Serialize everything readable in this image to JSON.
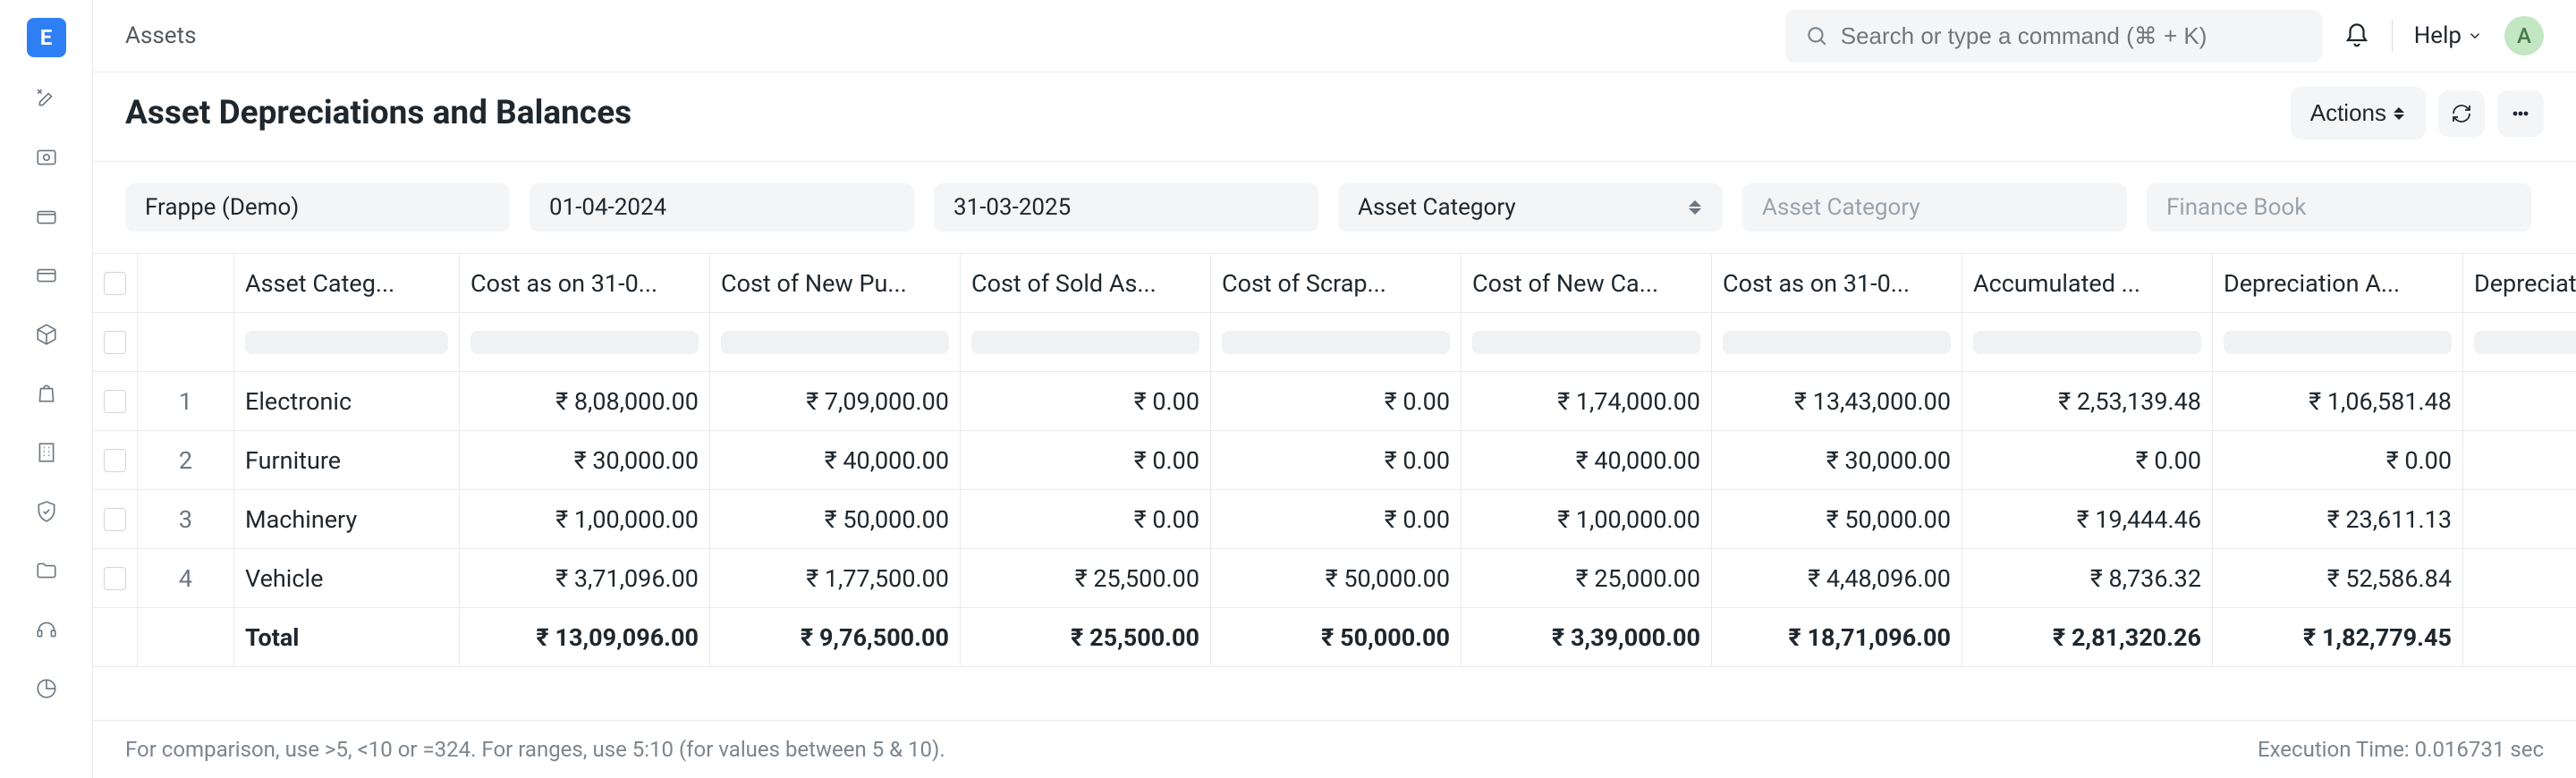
{
  "app": {
    "logo_letter": "E",
    "logo_bg": "#2f7ff4"
  },
  "topbar": {
    "breadcrumb": "Assets",
    "search_placeholder": "Search or type a command (⌘ + K)",
    "help_label": "Help",
    "avatar_letter": "A"
  },
  "header": {
    "title": "Asset Depreciations and Balances",
    "actions_label": "Actions"
  },
  "filters": {
    "company": "Frappe (Demo)",
    "from_date": "01-04-2024",
    "to_date": "31-03-2025",
    "group_by_value": "Asset Category",
    "asset_category_placeholder": "Asset Category",
    "finance_book_placeholder": "Finance Book"
  },
  "table": {
    "columns": [
      "Asset Categ...",
      "Cost as on 31-0...",
      "Cost of New Pu...",
      "Cost of Sold As...",
      "Cost of Scrap...",
      "Cost of New Ca...",
      "Cost as on 31-0...",
      "Accumulated ...",
      "Depreciation A...",
      "Depreciation Elimi..."
    ],
    "column_align": [
      "left",
      "right",
      "right",
      "right",
      "right",
      "right",
      "right",
      "right",
      "right",
      "right"
    ],
    "rows": [
      {
        "n": "1",
        "cells": [
          "Electronic",
          "₹ 8,08,000.00",
          "₹ 7,09,000.00",
          "₹ 0.00",
          "₹ 0.00",
          "₹ 1,74,000.00",
          "₹ 13,43,000.00",
          "₹ 2,53,139.48",
          "₹ 1,06,581.48",
          ""
        ]
      },
      {
        "n": "2",
        "cells": [
          "Furniture",
          "₹ 30,000.00",
          "₹ 40,000.00",
          "₹ 0.00",
          "₹ 0.00",
          "₹ 40,000.00",
          "₹ 30,000.00",
          "₹ 0.00",
          "₹ 0.00",
          ""
        ]
      },
      {
        "n": "3",
        "cells": [
          "Machinery",
          "₹ 1,00,000.00",
          "₹ 50,000.00",
          "₹ 0.00",
          "₹ 0.00",
          "₹ 1,00,000.00",
          "₹ 50,000.00",
          "₹ 19,444.46",
          "₹ 23,611.13",
          ""
        ]
      },
      {
        "n": "4",
        "cells": [
          "Vehicle",
          "₹ 3,71,096.00",
          "₹ 1,77,500.00",
          "₹ 25,500.00",
          "₹ 50,000.00",
          "₹ 25,000.00",
          "₹ 4,48,096.00",
          "₹ 8,736.32",
          "₹ 52,586.84",
          ""
        ]
      }
    ],
    "total_label": "Total",
    "totals": [
      "₹ 13,09,096.00",
      "₹ 9,76,500.00",
      "₹ 25,500.00",
      "₹ 50,000.00",
      "₹ 3,39,000.00",
      "₹ 18,71,096.00",
      "₹ 2,81,320.26",
      "₹ 1,82,779.45",
      ""
    ]
  },
  "footer": {
    "hint": "For comparison, use >5, <10 or =324. For ranges, use 5:10 (for values between 5 & 10).",
    "exec_time": "Execution Time: 0.016731 sec"
  },
  "colors": {
    "text": "#1f272e",
    "muted": "#7c858d",
    "border": "#e8eaed",
    "pill_bg": "#f4f5f6",
    "avatar_bg": "#c3e6c3"
  }
}
